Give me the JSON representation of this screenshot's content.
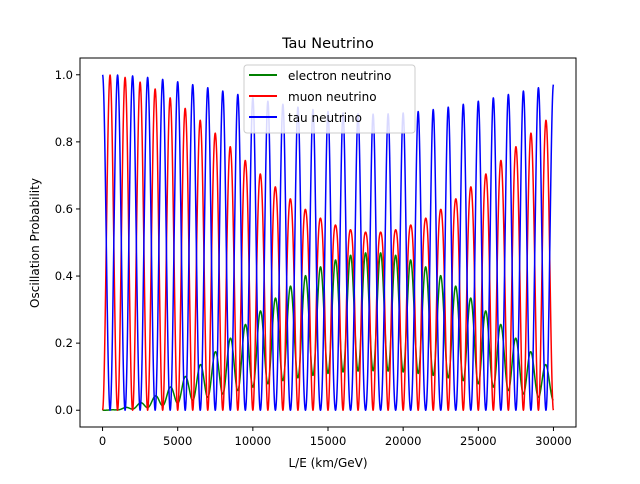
{
  "chart_data": {
    "type": "line",
    "title": "Tau Neutrino",
    "xlabel": "L/E (km/GeV)",
    "ylabel": "Oscillation Probability",
    "xlim": [
      -1500,
      31500
    ],
    "ylim": [
      -0.05,
      1.05
    ],
    "xticks": [
      0,
      5000,
      10000,
      15000,
      20000,
      25000,
      30000
    ],
    "xtick_labels": [
      "0",
      "5000",
      "10000",
      "15000",
      "20000",
      "25000",
      "30000"
    ],
    "yticks": [
      0.0,
      0.2,
      0.4,
      0.6,
      0.8,
      1.0
    ],
    "ytick_labels": [
      "0.0",
      "0.2",
      "0.4",
      "0.6",
      "0.8",
      "1.0"
    ],
    "grid": false,
    "legend_position": "top-center",
    "series": [
      {
        "name": "electron neutrino",
        "color": "#008000",
        "model": {
          "x_start": 0,
          "x_end": 30000,
          "slow_period": 36000,
          "fast_period": 1000,
          "electron_max": 0.47
        }
      },
      {
        "name": "muon neutrino",
        "color": "#ff0000"
      },
      {
        "name": "tau neutrino",
        "color": "#0000ff"
      }
    ]
  }
}
